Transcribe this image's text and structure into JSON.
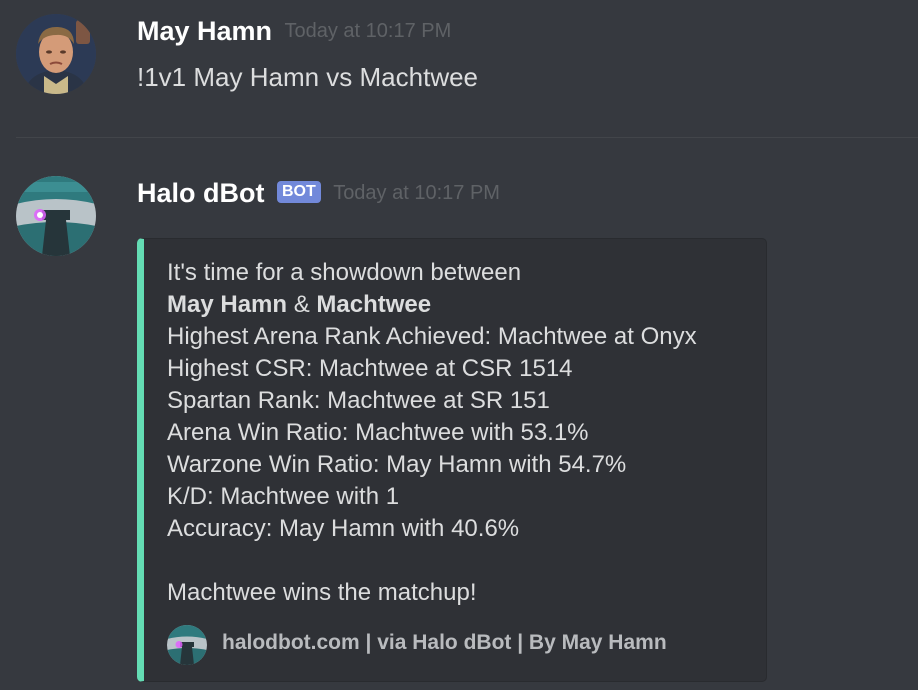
{
  "messages": [
    {
      "username": "May Hamn",
      "timestamp": "Today at 10:17 PM",
      "content": "!1v1 May Hamn vs Machtwee",
      "avatar_icon": "user-avatar-icon"
    },
    {
      "username": "Halo dBot",
      "bot_tag": "BOT",
      "timestamp": "Today at 10:17 PM",
      "avatar_icon": "halo-dbot-avatar-icon",
      "embed": {
        "accent_color": "#64dcb4",
        "intro": "It's time for a showdown between",
        "player1": "May Hamn",
        "ampersand": "&",
        "player2": "Machtwee",
        "lines": [
          "Highest Arena Rank Achieved: Machtwee at Onyx",
          "Highest CSR: Machtwee at CSR 1514",
          "Spartan Rank: Machtwee at SR 151",
          "Arena Win Ratio: Machtwee with 53.1%",
          "Warzone Win Ratio: May Hamn with 54.7%",
          "K/D: Machtwee with 1",
          "Accuracy: May Hamn with 40.6%"
        ],
        "result": "Machtwee wins the matchup!",
        "footer": {
          "icon": "halo-dbot-footer-icon",
          "text": "halodbot.com | via Halo dBot | By May Hamn"
        }
      }
    }
  ],
  "colors": {
    "background": "#36393f",
    "embed_background": "#2f3136",
    "bot_tag": "#7289da",
    "username": "#ffffff",
    "timestamp": "#5f6266"
  }
}
